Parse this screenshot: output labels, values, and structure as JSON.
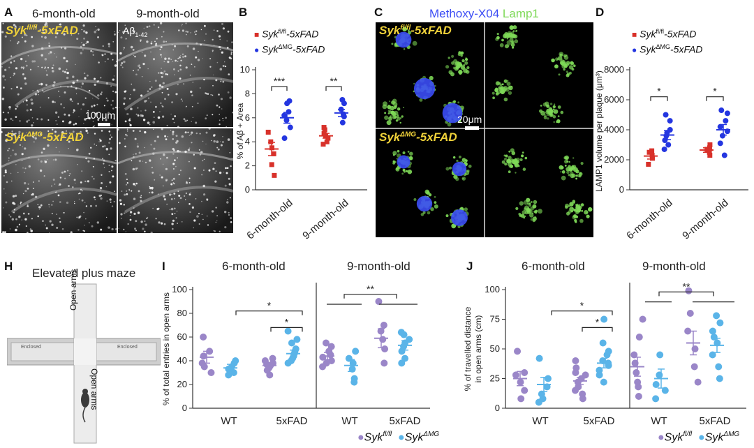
{
  "panels": {
    "A": {
      "label": "A",
      "title_left": "6-month-old",
      "title_right": "9-month-old",
      "top_label": "Syk",
      "top_label_sup": "fl/fl",
      "top_label_suffix": "-5xFAD",
      "bottom_label": "Syk",
      "bottom_label_sup": "ΔMG",
      "bottom_label_suffix": "-5xFAD",
      "abeta_label": "Aβ",
      "abeta_sub": "1-42",
      "scale_label": "100μm"
    },
    "B": {
      "label": "B",
      "legend_1": "Syk",
      "legend_1_sup": "fl/fl",
      "legend_1_suffix": "-5xFAD",
      "legend_2": "Syk",
      "legend_2_sup": "ΔMG",
      "legend_2_suffix": "-5xFAD"
    },
    "C": {
      "label": "C",
      "title_a": "Methoxy-X04",
      "title_b": "Lamp1",
      "top_label": "Syk",
      "top_label_sup": "fl/fl",
      "top_label_suffix": "-5xFAD",
      "bottom_label": "Syk",
      "bottom_label_sup": "ΔMG",
      "bottom_label_suffix": "-5xFAD",
      "scale_label": "20μm"
    },
    "D": {
      "label": "D",
      "legend_1": "Syk",
      "legend_1_sup": "fl/fl",
      "legend_1_suffix": "-5xFAD",
      "legend_2": "Syk",
      "legend_2_sup": "ΔMG",
      "legend_2_suffix": "-5xFAD"
    },
    "H": {
      "label": "H",
      "title": "Elevated plus maze",
      "open_arms_top": "Open arms",
      "open_arms_bottom": "Open arms",
      "enclosed_left": "Enclosed",
      "enclosed_right": "Enclosed"
    },
    "I": {
      "label": "I",
      "title_left": "6-month-old",
      "title_right": "9-month-old"
    },
    "J": {
      "label": "J",
      "title_left": "6-month-old",
      "title_right": "9-month-old"
    },
    "bottom_legend": {
      "g1": "Syk",
      "g1_sup": "fl/fl",
      "g2": "Syk",
      "g2_sup": "ΔMG"
    }
  },
  "colors": {
    "red": "#d8312a",
    "blue": "#2436e0",
    "purple": "#9a86c8",
    "lightblue": "#5ab4e8",
    "yellow": "#f0d23a",
    "green": "#7ed957",
    "methoxy": "#3b4cf5"
  },
  "chart_data": [
    {
      "id": "B",
      "type": "scatter",
      "ylabel": "% of Aβ1-42+ Area",
      "ylim": [
        0,
        10
      ],
      "yticks": [
        0,
        2,
        4,
        6,
        8,
        10
      ],
      "categories": [
        "6-month-old",
        "9-month-old"
      ],
      "series": [
        {
          "name": "Sykfl/fl-5xFAD",
          "color": "#d8312a",
          "marker": "square",
          "groups": [
            [
              1.2,
              2.1,
              3.0,
              3.5,
              4.0,
              4.8
            ],
            [
              3.8,
              4.0,
              4.3,
              4.5,
              4.7,
              5.0,
              5.2
            ]
          ],
          "means": [
            3.4,
            4.5
          ],
          "sem": [
            0.55,
            0.2
          ]
        },
        {
          "name": "SykΔMG-5xFAD",
          "color": "#2436e0",
          "marker": "circle",
          "groups": [
            [
              4.3,
              5.2,
              5.8,
              6.2,
              6.5,
              7.2,
              7.4
            ],
            [
              5.6,
              6.1,
              6.3,
              6.7,
              7.2,
              7.5
            ]
          ],
          "means": [
            6.0,
            6.4
          ],
          "sem": [
            0.45,
            0.3
          ]
        }
      ],
      "sig": [
        "***",
        "**"
      ]
    },
    {
      "id": "D",
      "type": "scatter",
      "ylabel": "LAMP1 volume per plaque (μm³)",
      "ylim": [
        0,
        8000
      ],
      "yticks": [
        0,
        2000,
        4000,
        6000,
        8000
      ],
      "categories": [
        "6-month-old",
        "9-month-old"
      ],
      "series": [
        {
          "name": "Sykfl/fl-5xFAD",
          "color": "#d8312a",
          "marker": "square",
          "groups": [
            [
              1700,
              2100,
              2300,
              2500,
              2600
            ],
            [
              2300,
              2500,
              2700,
              2800,
              3000
            ]
          ],
          "means": [
            2250,
            2650
          ],
          "sem": [
            200,
            150
          ]
        },
        {
          "name": "SykΔMG-5xFAD",
          "color": "#2436e0",
          "marker": "circle",
          "groups": [
            [
              2700,
              3000,
              3300,
              3600,
              3800,
              4000,
              4600,
              5000
            ],
            [
              2300,
              3100,
              3600,
              3900,
              4200,
              4600,
              5100,
              5300
            ]
          ],
          "means": [
            3650,
            4000
          ],
          "sem": [
            300,
            350
          ]
        }
      ],
      "sig": [
        "*",
        "*"
      ]
    },
    {
      "id": "I",
      "type": "scatter",
      "ylabel": "% of total entries in open arms",
      "ylim": [
        0,
        100
      ],
      "yticks": [
        0,
        20,
        40,
        60,
        80,
        100
      ],
      "xgroups": [
        "WT",
        "5xFAD",
        "WT",
        "5xFAD"
      ],
      "series": [
        {
          "name": "Sykfl/fl",
          "color": "#9a86c8",
          "groups": [
            [
              30,
              35,
              38,
              44,
              48,
              60
            ],
            [
              28,
              32,
              34,
              35,
              36,
              37,
              38,
              40,
              42
            ],
            [
              35,
              38,
              40,
              43,
              45,
              48,
              52,
              55
            ],
            [
              38,
              50,
              58,
              65,
              70,
              90
            ]
          ],
          "means": [
            43,
            36,
            44,
            59
          ],
          "sem": [
            5,
            2,
            3,
            8
          ]
        },
        {
          "name": "SykΔMG",
          "color": "#5ab4e8",
          "groups": [
            [
              28,
              30,
              33,
              35,
              38,
              40
            ],
            [
              38,
              40,
              42,
              44,
              46,
              48,
              50,
              55,
              58,
              65
            ],
            [
              22,
              25,
              33,
              38,
              42,
              48
            ],
            [
              38,
              42,
              48,
              52,
              55,
              58,
              62,
              64
            ]
          ],
          "means": [
            34,
            46,
            36,
            53
          ],
          "sem": [
            3,
            3,
            5,
            4
          ]
        }
      ],
      "sig": [
        "*",
        "*",
        "**"
      ]
    },
    {
      "id": "J",
      "type": "scatter",
      "ylabel": "% of travelled distance in open arms (cm)",
      "ylim": [
        0,
        100
      ],
      "yticks": [
        0,
        25,
        50,
        75,
        100
      ],
      "xgroups": [
        "WT",
        "5xFAD",
        "WT",
        "5xFAD"
      ],
      "series": [
        {
          "name": "Sykfl/fl",
          "color": "#9a86c8",
          "groups": [
            [
              8,
              15,
              22,
              28,
              30,
              48
            ],
            [
              8,
              12,
              15,
              18,
              22,
              25,
              28,
              30,
              34,
              40
            ],
            [
              10,
              18,
              22,
              30,
              38,
              45,
              60,
              75
            ],
            [
              22,
              35,
              50,
              65,
              80,
              99
            ]
          ],
          "means": [
            25,
            23,
            35,
            55
          ],
          "sem": [
            6,
            3,
            8,
            10
          ]
        },
        {
          "name": "SykΔMG",
          "color": "#5ab4e8",
          "groups": [
            [
              5,
              8,
              12,
              18,
              25,
              42
            ],
            [
              22,
              28,
              32,
              36,
              38,
              40,
              45,
              48,
              55,
              75
            ],
            [
              8,
              15,
              20,
              28,
              45
            ],
            [
              25,
              35,
              45,
              55,
              60,
              65,
              72,
              78
            ]
          ],
          "means": [
            20,
            38,
            25,
            53
          ],
          "sem": [
            6,
            4,
            8,
            6
          ]
        }
      ],
      "sig": [
        "*",
        "*",
        "**"
      ]
    }
  ],
  "axis_text": {
    "B_x1": "6-month-old",
    "B_x2": "9-month-old",
    "D_x1": "6-month-old",
    "D_x2": "9-month-old",
    "I_ylabel": "% of total entries in open arms",
    "J_ylabel_1": "% of travelled distance",
    "J_ylabel_2": "in open arms (cm)",
    "B_ylabel": "% of Aβ",
    "D_ylabel": "LAMP1 volume per plaque (μm³)"
  }
}
